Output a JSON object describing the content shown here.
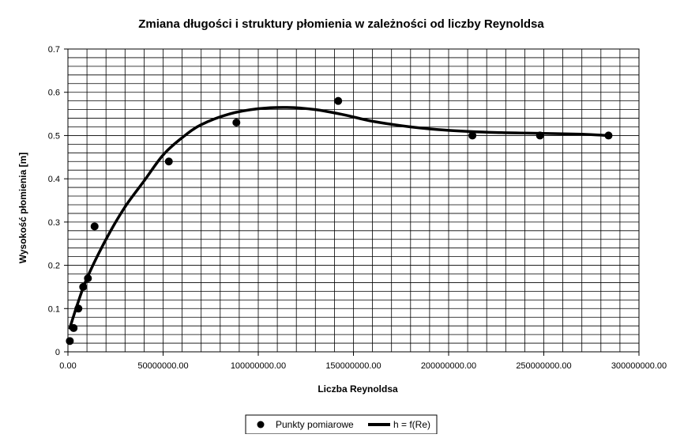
{
  "chart_data": {
    "type": "scatter",
    "title": "Zmiana długości i struktury płomienia w zależności od liczby Reynoldsa",
    "xlabel": "Liczba Reynoldsa",
    "ylabel": "Wysokość płomienia [m]",
    "xlim": [
      0,
      300000000
    ],
    "ylim": [
      0,
      0.7
    ],
    "grid": true,
    "legend_position": "bottom",
    "x_ticks": [
      {
        "value": 0,
        "label": "0.00"
      },
      {
        "value": 50000000,
        "label": "50000000.00"
      },
      {
        "value": 100000000,
        "label": "100000000.00"
      },
      {
        "value": 150000000,
        "label": "150000000.00"
      },
      {
        "value": 200000000,
        "label": "200000000.00"
      },
      {
        "value": 250000000,
        "label": "250000000.00"
      },
      {
        "value": 300000000,
        "label": "300000000.00"
      }
    ],
    "y_ticks": [
      {
        "value": 0,
        "label": "0"
      },
      {
        "value": 0.1,
        "label": "0.1"
      },
      {
        "value": 0.2,
        "label": "0.2"
      },
      {
        "value": 0.3,
        "label": "0.3"
      },
      {
        "value": 0.4,
        "label": "0.4"
      },
      {
        "value": 0.5,
        "label": "0.5"
      },
      {
        "value": 0.6,
        "label": "0.6"
      },
      {
        "value": 0.7,
        "label": "0.7"
      }
    ],
    "series": [
      {
        "name": "Punkty pomiarowe",
        "kind": "markers",
        "color": "#000000",
        "points": [
          {
            "x": 1000000,
            "y": 0.025
          },
          {
            "x": 3000000,
            "y": 0.055
          },
          {
            "x": 5500000,
            "y": 0.1
          },
          {
            "x": 8000000,
            "y": 0.15
          },
          {
            "x": 10500000,
            "y": 0.17
          },
          {
            "x": 14000000,
            "y": 0.29
          },
          {
            "x": 53000000,
            "y": 0.44
          },
          {
            "x": 88500000,
            "y": 0.53
          },
          {
            "x": 142000000,
            "y": 0.58
          },
          {
            "x": 212500000,
            "y": 0.5
          },
          {
            "x": 248000000,
            "y": 0.5
          },
          {
            "x": 284000000,
            "y": 0.5
          }
        ]
      },
      {
        "name": "h = f(Re)",
        "kind": "line",
        "color": "#000000",
        "points": [
          {
            "x": 1000000,
            "y": 0.055
          },
          {
            "x": 5000000,
            "y": 0.11
          },
          {
            "x": 10000000,
            "y": 0.17
          },
          {
            "x": 20000000,
            "y": 0.26
          },
          {
            "x": 30000000,
            "y": 0.335
          },
          {
            "x": 40000000,
            "y": 0.395
          },
          {
            "x": 50000000,
            "y": 0.455
          },
          {
            "x": 60000000,
            "y": 0.495
          },
          {
            "x": 70000000,
            "y": 0.525
          },
          {
            "x": 85000000,
            "y": 0.55
          },
          {
            "x": 100000000,
            "y": 0.562
          },
          {
            "x": 115000000,
            "y": 0.565
          },
          {
            "x": 130000000,
            "y": 0.56
          },
          {
            "x": 145000000,
            "y": 0.548
          },
          {
            "x": 160000000,
            "y": 0.533
          },
          {
            "x": 180000000,
            "y": 0.52
          },
          {
            "x": 200000000,
            "y": 0.512
          },
          {
            "x": 225000000,
            "y": 0.507
          },
          {
            "x": 250000000,
            "y": 0.505
          },
          {
            "x": 270000000,
            "y": 0.503
          },
          {
            "x": 284000000,
            "y": 0.5
          }
        ]
      }
    ]
  }
}
